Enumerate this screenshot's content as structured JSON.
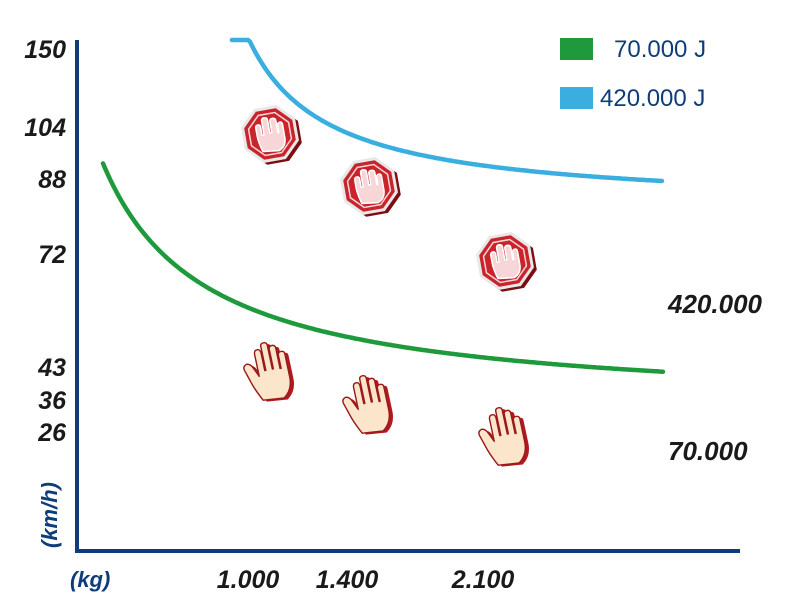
{
  "chart_data": {
    "type": "line",
    "title": "",
    "xlabel": "(kg)",
    "ylabel": "(km/h)",
    "x_ticks": [
      1000,
      1400,
      2100
    ],
    "x_tick_labels": [
      "1.000",
      "1.400",
      "2.100"
    ],
    "y_ticks": [
      26,
      36,
      43,
      72,
      88,
      104,
      150
    ],
    "y_tick_labels": [
      "26",
      "36",
      "43",
      "72",
      "88",
      "104",
      "150"
    ],
    "legend_position": "top-right",
    "series": [
      {
        "name": "70.000 J",
        "end_label": "70.000",
        "color": "#1e9a3c",
        "marker": "hand-icon",
        "points": [
          {
            "x": 1000,
            "y": 43
          },
          {
            "x": 1400,
            "y": 36
          },
          {
            "x": 2100,
            "y": 26
          }
        ]
      },
      {
        "name": "420.000 J",
        "end_label": "420.000",
        "color": "#3baee0",
        "marker": "stop-sign-icon",
        "points": [
          {
            "x": 1000,
            "y": 104
          },
          {
            "x": 1400,
            "y": 88
          },
          {
            "x": 2100,
            "y": 72
          }
        ]
      }
    ]
  }
}
